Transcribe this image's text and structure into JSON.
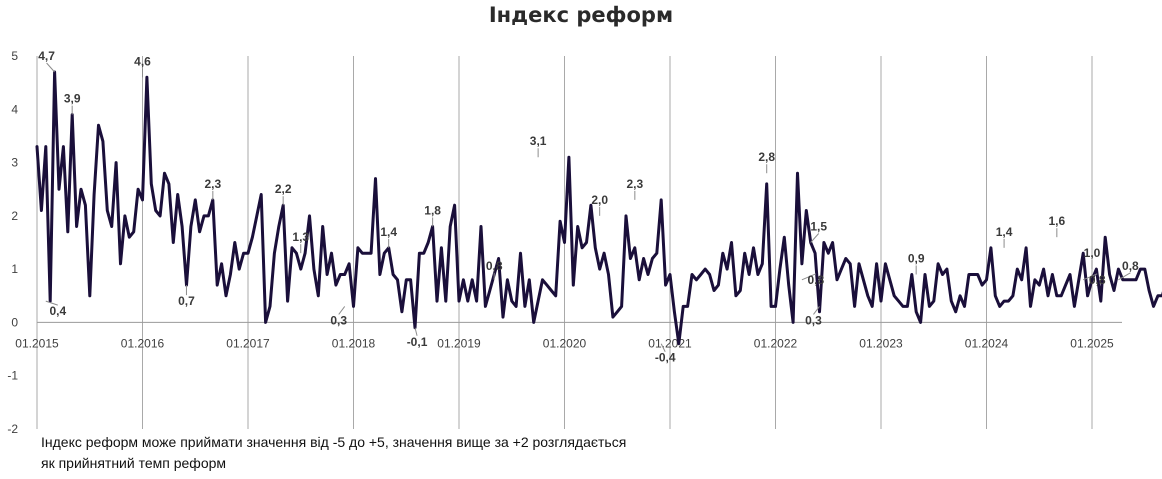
{
  "chart_data": {
    "type": "line",
    "title": "Індекс реформ",
    "xlabel": "",
    "ylabel": "",
    "ylim": [
      -2,
      5
    ],
    "yticks": [
      "5",
      "4",
      "3",
      "2",
      "1",
      "0",
      "-1",
      "-2"
    ],
    "xticks": [
      "01.2015",
      "01.2016",
      "01.2017",
      "01.2018",
      "01.2019",
      "01.2020",
      "01.2021",
      "01.2022",
      "01.2023",
      "01.2024",
      "01.2025"
    ],
    "grid": "vertical lines at each January",
    "legend": "none",
    "series_color": "#1a0f3a",
    "series": [
      {
        "x_start": "01.2015",
        "step": "half-month",
        "values": [
          3.3,
          2.1,
          3.3,
          0.4,
          4.7,
          2.5,
          3.3,
          1.7,
          3.9,
          1.8,
          2.5,
          2.2,
          0.5,
          2.4,
          3.7,
          3.4,
          2.1,
          1.8,
          3.0,
          1.1,
          2.0,
          1.6,
          1.7,
          2.5,
          2.3,
          4.6,
          2.6,
          2.1,
          2.0,
          2.8,
          2.6,
          1.5,
          2.4,
          1.8,
          0.7,
          1.8,
          2.3,
          1.7,
          2.0,
          2.0,
          2.3,
          0.7,
          1.1,
          0.5,
          0.9,
          1.5,
          1.0,
          1.3,
          1.3,
          1.6,
          2.0,
          2.4,
          0.0,
          0.3,
          1.3,
          1.8,
          2.2,
          0.4,
          1.4,
          1.3,
          1.0,
          1.3,
          2.0,
          1.0,
          0.5,
          1.8,
          0.9,
          1.3,
          0.7,
          0.9,
          0.9,
          1.1,
          0.3,
          1.4,
          1.3,
          1.3,
          1.3,
          2.7,
          0.9,
          1.3,
          1.4,
          0.9,
          0.8,
          0.2,
          0.8,
          0.8,
          -0.1,
          1.3,
          1.3,
          1.5,
          1.8,
          0.4,
          1.4,
          0.4,
          1.8,
          2.2,
          0.4,
          0.8,
          0.4,
          0.8,
          0.4,
          1.8,
          0.3,
          0.6,
          0.9,
          1.2,
          0.1,
          0.8,
          0.4,
          0.3,
          1.3,
          0.3,
          0.8,
          0.0,
          0.4,
          0.8,
          0.7,
          0.6,
          0.5,
          1.9,
          1.5,
          3.1,
          0.7,
          1.8,
          1.4,
          1.5,
          2.2,
          1.4,
          1.0,
          1.3,
          0.9,
          0.1,
          0.2,
          0.3,
          2.0,
          1.2,
          1.4,
          0.8,
          1.2,
          0.9,
          1.2,
          1.3,
          2.3,
          0.7,
          0.9,
          0.2,
          -0.4,
          0.3,
          0.3,
          0.9,
          0.8,
          0.9,
          1.0,
          0.9,
          0.6,
          0.7,
          1.3,
          1.0,
          1.5,
          0.5,
          0.6,
          1.3,
          0.9,
          1.4,
          0.9,
          1.1,
          2.6,
          0.3,
          0.3,
          1.0,
          1.6,
          0.7,
          0.0,
          2.8,
          1.1,
          2.1,
          1.5,
          1.3,
          0.2,
          1.5,
          1.3,
          1.5,
          0.8,
          1.0,
          1.2,
          1.1,
          0.3,
          1.1,
          0.8,
          0.5,
          0.3,
          1.1,
          0.4,
          1.1,
          0.8,
          0.5,
          0.4,
          0.3,
          0.3,
          0.9,
          0.2,
          0.0,
          0.9,
          0.3,
          0.4,
          1.1,
          0.9,
          1.0,
          0.4,
          0.2,
          0.5,
          0.3,
          0.9,
          0.9,
          0.9,
          0.7,
          0.8,
          1.4,
          0.5,
          0.3,
          0.4,
          0.4,
          0.5,
          1.0,
          0.8,
          1.4,
          0.3,
          0.8,
          0.7,
          1.0,
          0.5,
          0.9,
          0.5,
          0.5,
          0.7,
          0.9,
          0.3,
          0.8,
          1.3,
          0.5,
          0.8,
          1.0,
          0.4,
          1.6,
          0.9,
          0.6,
          1.0,
          0.8,
          0.8,
          0.8,
          0.8,
          1.0,
          1.0,
          0.6,
          0.3,
          0.5,
          0.5,
          0.8,
          0.4,
          0.8
        ]
      }
    ],
    "annotations": [
      {
        "label": "4,7",
        "x": "2015-03",
        "y": 4.7
      },
      {
        "label": "0,4",
        "x": "2015-02",
        "y": 0.4
      },
      {
        "label": "3,9",
        "x": "2015-05",
        "y": 3.9
      },
      {
        "label": "4,6",
        "x": "2016-01",
        "y": 4.6
      },
      {
        "label": "0,7",
        "x": "2016-06",
        "y": 0.7
      },
      {
        "label": "2,3",
        "x": "2016-09",
        "y": 2.3
      },
      {
        "label": "2,2",
        "x": "2017-05",
        "y": 2.2
      },
      {
        "label": "1,3",
        "x": "2017-07",
        "y": 1.3
      },
      {
        "label": "0,3",
        "x": "2017-12",
        "y": 0.3
      },
      {
        "label": "1,4",
        "x": "2018-05",
        "y": 1.4
      },
      {
        "label": "-0,1",
        "x": "2018-08",
        "y": -0.1
      },
      {
        "label": "1,8",
        "x": "2018-10",
        "y": 1.8
      },
      {
        "label": "0,8",
        "x": "2019-05",
        "y": 0.8
      },
      {
        "label": "3,1",
        "x": "2019-10",
        "y": 3.1
      },
      {
        "label": "2,0",
        "x": "2020-05",
        "y": 2.0
      },
      {
        "label": "2,3",
        "x": "2020-09",
        "y": 2.3
      },
      {
        "label": "-0,4",
        "x": "2020-12",
        "y": -0.4
      },
      {
        "label": "2,8",
        "x": "2021-12",
        "y": 2.8
      },
      {
        "label": "1,5",
        "x": "2022-05",
        "y": 1.5
      },
      {
        "label": "0,8",
        "x": "2022-04",
        "y": 0.8
      },
      {
        "label": "0,3",
        "x": "2022-06",
        "y": 0.3
      },
      {
        "label": "0,9",
        "x": "2023-05",
        "y": 0.9
      },
      {
        "label": "1,4",
        "x": "2024-03",
        "y": 1.4
      },
      {
        "label": "1,6",
        "x": "2024-09",
        "y": 1.6
      },
      {
        "label": "1,0",
        "x": "2025-01",
        "y": 1.0
      },
      {
        "label": "0,8",
        "x": "2024-12",
        "y": 0.8
      },
      {
        "label": "0,8",
        "x": "2025-04",
        "y": 0.8
      }
    ],
    "note_lines": [
      "Індекс реформ може приймати значення від -5 до +5, значення вище за +2 розглядається",
      "як прийнятний темп реформ"
    ]
  }
}
